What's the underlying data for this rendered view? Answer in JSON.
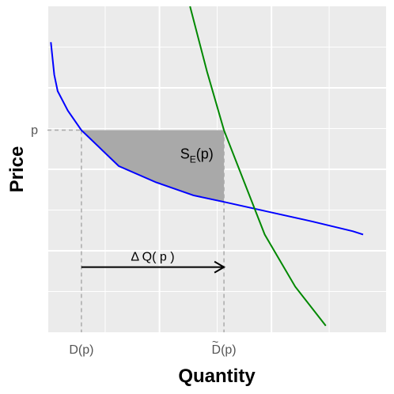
{
  "chart_data": {
    "type": "line",
    "title": "",
    "xlabel": "Quantity",
    "ylabel": "Price",
    "grid": true,
    "xlim": [
      0,
      10
    ],
    "ylim": [
      0,
      10
    ],
    "xtick_labels": [
      {
        "x": 1.0,
        "text": "D(p)"
      },
      {
        "x": 5.2,
        "text": "D(p)",
        "tilde": true
      }
    ],
    "ytick_labels": [
      {
        "y": 6.2,
        "text": "p"
      }
    ],
    "series": [
      {
        "color": "#0000ff",
        "x": [
          0.1,
          0.2,
          0.3,
          0.6,
          1.0,
          2.1,
          3.2,
          4.3,
          5.2,
          6.5,
          7.8,
          9.0,
          9.3
        ],
        "y": [
          8.9,
          7.9,
          7.4,
          6.8,
          6.2,
          5.1,
          4.6,
          4.2,
          4.0,
          3.7,
          3.4,
          3.1,
          3.0
        ]
      },
      {
        "color": "#008800",
        "x": [
          4.2,
          4.7,
          5.2,
          5.8,
          6.4,
          7.3,
          8.2
        ],
        "y": [
          10.0,
          8.0,
          6.2,
          4.6,
          3.0,
          1.4,
          0.2
        ]
      }
    ],
    "shaded_region": {
      "label": "S_E(p)",
      "label_base": "S",
      "label_sub": "E",
      "label_rest": "(p)",
      "color": "#a9a9a9",
      "upper_y": 6.2,
      "x_from": 1.0,
      "x_to": 5.2
    },
    "guides": [
      {
        "from": [
          0,
          6.2
        ],
        "to": [
          1.0,
          6.2
        ]
      },
      {
        "from": [
          1.0,
          6.2
        ],
        "to": [
          1.0,
          0
        ]
      },
      {
        "from": [
          5.2,
          6.2
        ],
        "to": [
          5.2,
          0
        ]
      }
    ],
    "annotation_arrow": {
      "label": "Δ Q( p )",
      "from": [
        1.0,
        2.0
      ],
      "to": [
        5.2,
        2.0
      ]
    },
    "colors": {
      "panel_background": "#ebebeb",
      "grid": "#ffffff",
      "guide": "#aaaaaa",
      "tick_label": "#555555",
      "axis_title": "#000000"
    }
  }
}
